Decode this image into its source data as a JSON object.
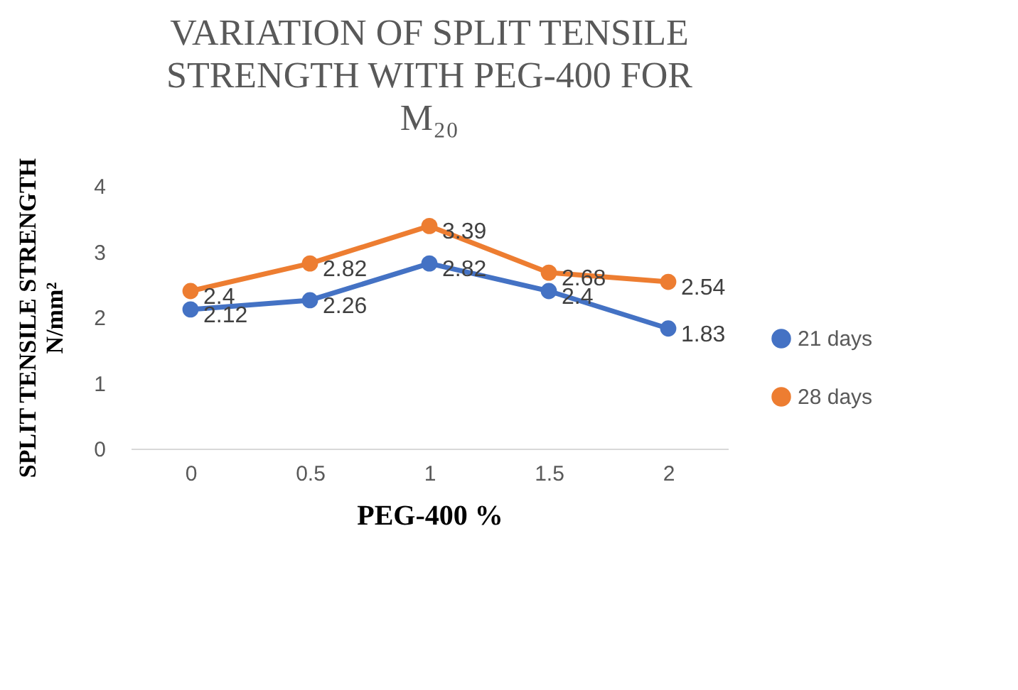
{
  "chart_data": {
    "type": "line",
    "title": "VARIATION OF SPLIT TENSILE STRENGTH WITH PEG-400 FOR M₂₀",
    "xlabel": "PEG-400 %",
    "ylabel": "SPLIT TENSILE STRENGTH N/mm²",
    "categories": [
      "0",
      "0.5",
      "1",
      "1.5",
      "2"
    ],
    "series": [
      {
        "name": "21 days",
        "color": "#4472c4",
        "values": [
          2.12,
          2.26,
          2.82,
          2.4,
          1.83
        ]
      },
      {
        "name": "28 days",
        "color": "#ed7d31",
        "values": [
          2.4,
          2.82,
          3.39,
          2.68,
          2.54
        ]
      }
    ],
    "ylim": [
      0,
      4
    ],
    "yticks": [
      0,
      1,
      2,
      3,
      4
    ],
    "grid": false,
    "legend": "right",
    "marker": "circle",
    "line_style": "solid",
    "data_labels": true
  }
}
